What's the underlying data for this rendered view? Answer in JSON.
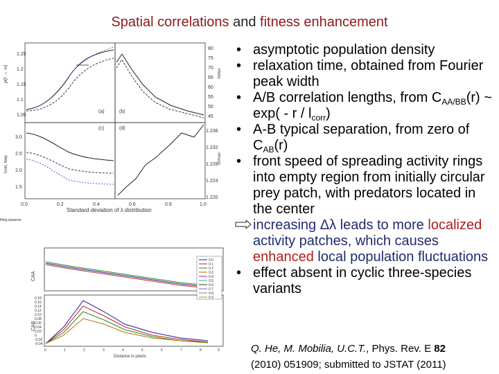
{
  "title": {
    "part1": "Spatial correlations ",
    "part2": "and",
    "part3": " fitness enhancement"
  },
  "bullets": {
    "b1": "asymptotic population density",
    "b2": "relaxation time, obtained from Fourier peak width",
    "b3a": "A/B correlation lengths, from C",
    "b3sub1": "AA/BB",
    "b3b": "(r) ~ exp( - r / l",
    "b3sub2": "corr",
    "b3c": ")",
    "b4a": "A-B typical separation, from zero of C",
    "b4sub": "AB",
    "b4b": "(r)",
    "b5": "front speed of spreading activity rings into empty region from initially circular prey patch, with predators located in the center",
    "arrow_a": "increasing Δλ leads to more ",
    "arrow_b": "localized",
    "arrow_c": " activity patches, which causes ",
    "arrow_d": "enhanced",
    "arrow_e": " local population fluctuations",
    "b6": "effect absent in cyclic three-species variants"
  },
  "citation": {
    "authors": "Q. He, M. Mobilia, U.C.T.",
    "sep": ", Phys. Rev. E ",
    "vol": "82",
    "rest": "(2010) 051909; submitted to JSTAT (2011)"
  },
  "figure_top": {
    "xlabel": "Standard deviation of λ distribution",
    "x_ticks": [
      "0.0",
      "0.2",
      "0.4",
      "0.6",
      "0.8",
      "1.0"
    ],
    "panel_labels": [
      "(a)",
      "(b)",
      "(c)",
      "(d)"
    ],
    "ylabel_a": "ρ(t → ∞)",
    "ylabel_b": "τrelax",
    "ylabel_c": "lcorr, lsep",
    "ylabel_d": "v/rmax",
    "a_ticks": [
      "1.25",
      "1.2",
      "1.15",
      "1.1",
      "1.05"
    ],
    "b_ticks": [
      "80",
      "75",
      "70",
      "65",
      "60",
      "55",
      "50",
      "45"
    ],
    "c_ticks": [
      "3.0",
      "2.5",
      "2.0",
      "1.5"
    ],
    "d_ticks": [
      "1.236",
      "1.232",
      "1.228",
      "1.224",
      "1.220"
    ],
    "caption": "filing:xplasma"
  },
  "figure_bottom": {
    "xlabel": "Distance in pixels",
    "x_ticks": [
      "0",
      "1",
      "2",
      "3",
      "4",
      "5",
      "6",
      "7",
      "8",
      "9"
    ],
    "ylabel_top": "CAA",
    "ylabel_bottom": "CAB",
    "legend": [
      "0.0",
      "0.1",
      "0.2",
      "0.3",
      "0.4",
      "0.5",
      "0.6",
      "0.7",
      "0.8",
      "0.9"
    ],
    "y_ticks_bottom": [
      "0.18",
      "0.16",
      "0.14",
      "0.12",
      "0.10",
      "0.08",
      "0.06",
      "0.04",
      "0.02",
      "0",
      "-0.02",
      "-0.04"
    ]
  },
  "colors": {
    "title": "#8b1a1a",
    "accent_red": "#b01c1c",
    "accent_blue": "#1f2b6e"
  }
}
